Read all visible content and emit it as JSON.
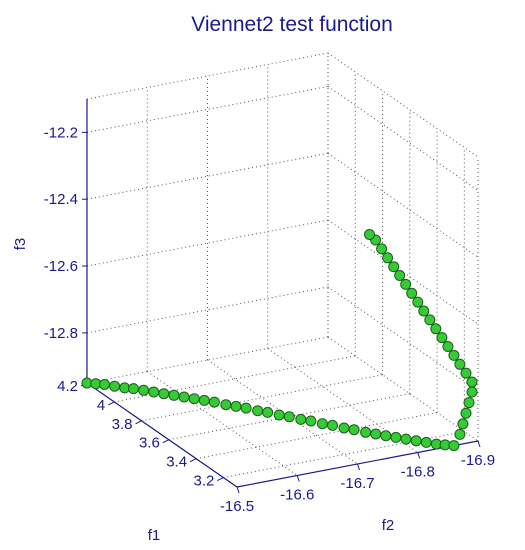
{
  "chart_data": {
    "type": "scatter3d",
    "title": "Viennet2 test function",
    "xlabel": "f1",
    "ylabel": "f2",
    "zlabel": "f3",
    "xlim": [
      3.1,
      4.2
    ],
    "ylim": [
      -16.5,
      -16.9
    ],
    "zlim": [
      -12.95,
      -12.1
    ],
    "xticks": [
      "4.2",
      "4",
      "3.8",
      "3.6",
      "3.4",
      "3.2"
    ],
    "yticks": [
      "-16.5",
      "-16.6",
      "-16.7",
      "-16.8",
      "-16.9"
    ],
    "zticks": [
      "-12.2",
      "-12.4",
      "-12.6",
      "-12.8"
    ],
    "grid": true,
    "marker_color": "#33cc33",
    "marker_edge_color": "#1f5c1f",
    "points": [
      [
        4.2,
        -16.5,
        -12.95
      ],
      [
        4.18,
        -16.51,
        -12.95
      ],
      [
        4.16,
        -16.52,
        -12.95
      ],
      [
        4.13,
        -16.53,
        -12.95
      ],
      [
        4.1,
        -16.54,
        -12.95
      ],
      [
        4.08,
        -16.55,
        -12.95
      ],
      [
        4.05,
        -16.56,
        -12.95
      ],
      [
        4.02,
        -16.57,
        -12.95
      ],
      [
        3.99,
        -16.58,
        -12.95
      ],
      [
        3.96,
        -16.59,
        -12.95
      ],
      [
        3.93,
        -16.6,
        -12.95
      ],
      [
        3.9,
        -16.61,
        -12.95
      ],
      [
        3.87,
        -16.62,
        -12.95
      ],
      [
        3.84,
        -16.63,
        -12.95
      ],
      [
        3.8,
        -16.64,
        -12.95
      ],
      [
        3.77,
        -16.65,
        -12.95
      ],
      [
        3.74,
        -16.66,
        -12.95
      ],
      [
        3.7,
        -16.67,
        -12.95
      ],
      [
        3.67,
        -16.68,
        -12.95
      ],
      [
        3.63,
        -16.69,
        -12.95
      ],
      [
        3.6,
        -16.7,
        -12.95
      ],
      [
        3.56,
        -16.71,
        -12.95
      ],
      [
        3.53,
        -16.72,
        -12.95
      ],
      [
        3.49,
        -16.73,
        -12.95
      ],
      [
        3.46,
        -16.74,
        -12.95
      ],
      [
        3.42,
        -16.75,
        -12.95
      ],
      [
        3.39,
        -16.76,
        -12.95
      ],
      [
        3.35,
        -16.77,
        -12.95
      ],
      [
        3.32,
        -16.78,
        -12.95
      ],
      [
        3.29,
        -16.79,
        -12.95
      ],
      [
        3.26,
        -16.8,
        -12.95
      ],
      [
        3.23,
        -16.81,
        -12.95
      ],
      [
        3.2,
        -16.82,
        -12.95
      ],
      [
        3.17,
        -16.83,
        -12.95
      ],
      [
        3.14,
        -16.84,
        -12.95
      ],
      [
        3.12,
        -16.85,
        -12.95
      ],
      [
        3.1,
        -16.86,
        -12.95
      ],
      [
        3.1,
        -16.87,
        -12.92
      ],
      [
        3.1,
        -16.875,
        -12.89
      ],
      [
        3.1,
        -16.88,
        -12.86
      ],
      [
        3.1,
        -16.885,
        -12.83
      ],
      [
        3.1,
        -16.89,
        -12.8
      ],
      [
        3.1,
        -16.89,
        -12.77
      ],
      [
        3.1,
        -16.88,
        -12.74
      ],
      [
        3.1,
        -16.87,
        -12.71
      ],
      [
        3.1,
        -16.86,
        -12.68
      ],
      [
        3.1,
        -16.85,
        -12.65
      ],
      [
        3.1,
        -16.84,
        -12.62
      ],
      [
        3.1,
        -16.83,
        -12.59
      ],
      [
        3.1,
        -16.82,
        -12.56
      ],
      [
        3.1,
        -16.81,
        -12.53
      ],
      [
        3.1,
        -16.8,
        -12.5
      ],
      [
        3.1,
        -16.79,
        -12.47
      ],
      [
        3.1,
        -16.78,
        -12.44
      ],
      [
        3.1,
        -16.77,
        -12.41
      ],
      [
        3.1,
        -16.76,
        -12.38
      ],
      [
        3.1,
        -16.75,
        -12.35
      ],
      [
        3.1,
        -16.74,
        -12.32
      ],
      [
        3.1,
        -16.73,
        -12.29
      ],
      [
        3.1,
        -16.72,
        -12.27
      ]
    ]
  }
}
